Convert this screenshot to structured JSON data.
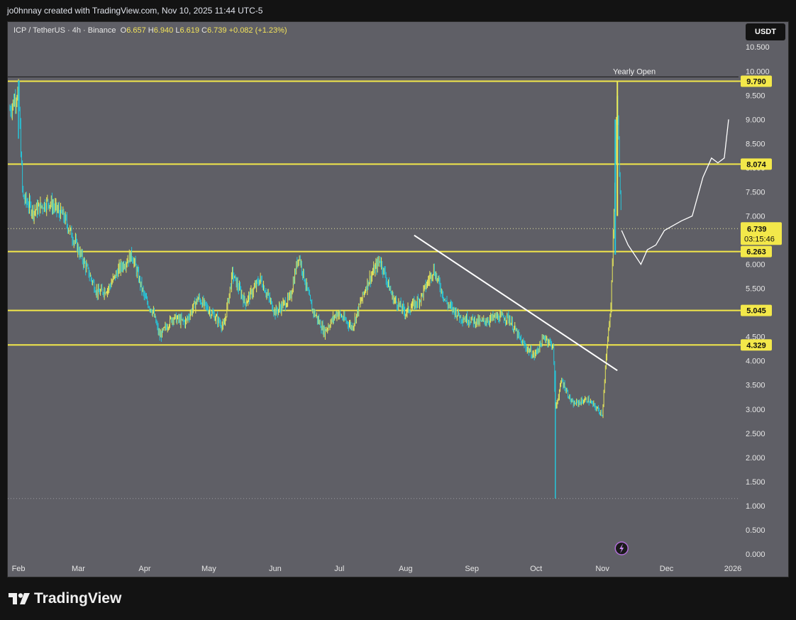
{
  "header": {
    "attribution": "jo0hnnay created with TradingView.com, Nov 10, 2025 11:44 UTC-5"
  },
  "legend": {
    "symbol": "ICP / TetherUS · 4h · Binance",
    "o_label": "O",
    "o_value": "6.657",
    "h_label": "H",
    "h_value": "6.940",
    "l_label": "L",
    "l_value": "6.619",
    "c_label": "C",
    "c_value": "6.739",
    "change": "+0.082 (+1.23%)"
  },
  "unit_button": "USDT",
  "footer": {
    "brand": "TradingView"
  },
  "colors": {
    "pane": "#5f5f66",
    "level": "#f3e84a",
    "candle_a": "#e8e85a",
    "candle_b": "#26c6da",
    "line": "#ffffff"
  },
  "chart_data": {
    "type": "candlestick",
    "x_ticks": [
      "Feb",
      "Mar",
      "Apr",
      "May",
      "Jun",
      "Jul",
      "Aug",
      "Sep",
      "Oct",
      "Nov",
      "Dec",
      "2026"
    ],
    "y_ticks": [
      "0.000",
      "0.500",
      "1.000",
      "1.500",
      "2.000",
      "2.500",
      "3.000",
      "3.500",
      "4.000",
      "4.500",
      "5.000",
      "5.500",
      "6.000",
      "6.500",
      "7.000",
      "7.500",
      "8.000",
      "8.500",
      "9.000",
      "9.500",
      "10.000",
      "10.500"
    ],
    "ylim": [
      0,
      10.9
    ],
    "levels": [
      {
        "value": 9.79,
        "label": "9.790"
      },
      {
        "value": 8.074,
        "label": "8.074"
      },
      {
        "value": 6.263,
        "label": "6.263"
      },
      {
        "value": 5.045,
        "label": "5.045"
      },
      {
        "value": 4.329,
        "label": "4.329"
      }
    ],
    "yearly_open": {
      "label": "Yearly Open",
      "value": 9.88
    },
    "last_price": {
      "value": 6.739,
      "label": "6.739",
      "countdown": "03:15:46"
    },
    "trendline": {
      "from": [
        "2025-08-05",
        6.6
      ],
      "to": [
        "2025-11-08",
        3.8
      ]
    },
    "price_path": [
      [
        "2025-01-28",
        9.2
      ],
      [
        "2025-02-01",
        9.6
      ],
      [
        "2025-02-03",
        7.4
      ],
      [
        "2025-02-08",
        7.1
      ],
      [
        "2025-02-15",
        7.3
      ],
      [
        "2025-02-22",
        7.0
      ],
      [
        "2025-03-01",
        6.3
      ],
      [
        "2025-03-05",
        5.9
      ],
      [
        "2025-03-10",
        5.4
      ],
      [
        "2025-03-15",
        5.5
      ],
      [
        "2025-03-20",
        5.9
      ],
      [
        "2025-03-26",
        6.2
      ],
      [
        "2025-04-01",
        5.3
      ],
      [
        "2025-04-05",
        5.0
      ],
      [
        "2025-04-08",
        4.5
      ],
      [
        "2025-04-14",
        4.9
      ],
      [
        "2025-04-20",
        4.8
      ],
      [
        "2025-04-26",
        5.3
      ],
      [
        "2025-05-02",
        5.0
      ],
      [
        "2025-05-08",
        4.7
      ],
      [
        "2025-05-12",
        5.8
      ],
      [
        "2025-05-18",
        5.2
      ],
      [
        "2025-05-25",
        5.7
      ],
      [
        "2025-06-01",
        5.0
      ],
      [
        "2025-06-08",
        5.3
      ],
      [
        "2025-06-12",
        6.2
      ],
      [
        "2025-06-18",
        5.1
      ],
      [
        "2025-06-24",
        4.6
      ],
      [
        "2025-06-30",
        5.0
      ],
      [
        "2025-07-07",
        4.7
      ],
      [
        "2025-07-14",
        5.6
      ],
      [
        "2025-07-20",
        6.1
      ],
      [
        "2025-07-26",
        5.3
      ],
      [
        "2025-08-01",
        5.0
      ],
      [
        "2025-08-08",
        5.3
      ],
      [
        "2025-08-14",
        5.9
      ],
      [
        "2025-08-20",
        5.2
      ],
      [
        "2025-08-27",
        4.9
      ],
      [
        "2025-09-05",
        4.8
      ],
      [
        "2025-09-12",
        4.9
      ],
      [
        "2025-09-18",
        4.9
      ],
      [
        "2025-09-24",
        4.4
      ],
      [
        "2025-09-30",
        4.1
      ],
      [
        "2025-10-05",
        4.5
      ],
      [
        "2025-10-09",
        4.3
      ],
      [
        "2025-10-10",
        3.0
      ],
      [
        "2025-10-13",
        3.6
      ],
      [
        "2025-10-18",
        3.1
      ],
      [
        "2025-10-25",
        3.2
      ],
      [
        "2025-11-01",
        2.9
      ],
      [
        "2025-11-03",
        4.2
      ],
      [
        "2025-11-05",
        5.2
      ],
      [
        "2025-11-06",
        6.5
      ],
      [
        "2025-11-08",
        9.6
      ],
      [
        "2025-11-09",
        7.8
      ],
      [
        "2025-11-10",
        6.7
      ]
    ],
    "wick_low": {
      "date": "2025-10-10",
      "value": 1.15
    },
    "projection": [
      [
        "2025-11-10",
        6.7
      ],
      [
        "2025-11-13",
        6.4
      ],
      [
        "2025-11-16",
        6.2
      ],
      [
        "2025-11-19",
        6.0
      ],
      [
        "2025-11-22",
        6.3
      ],
      [
        "2025-11-26",
        6.4
      ],
      [
        "2025-11-30",
        6.7
      ],
      [
        "2025-12-04",
        6.8
      ],
      [
        "2025-12-08",
        6.9
      ],
      [
        "2025-12-13",
        7.0
      ],
      [
        "2025-12-18",
        7.8
      ],
      [
        "2025-12-22",
        8.2
      ],
      [
        "2025-12-25",
        8.1
      ],
      [
        "2025-12-28",
        8.2
      ],
      [
        "2025-12-30",
        9.0
      ]
    ]
  }
}
